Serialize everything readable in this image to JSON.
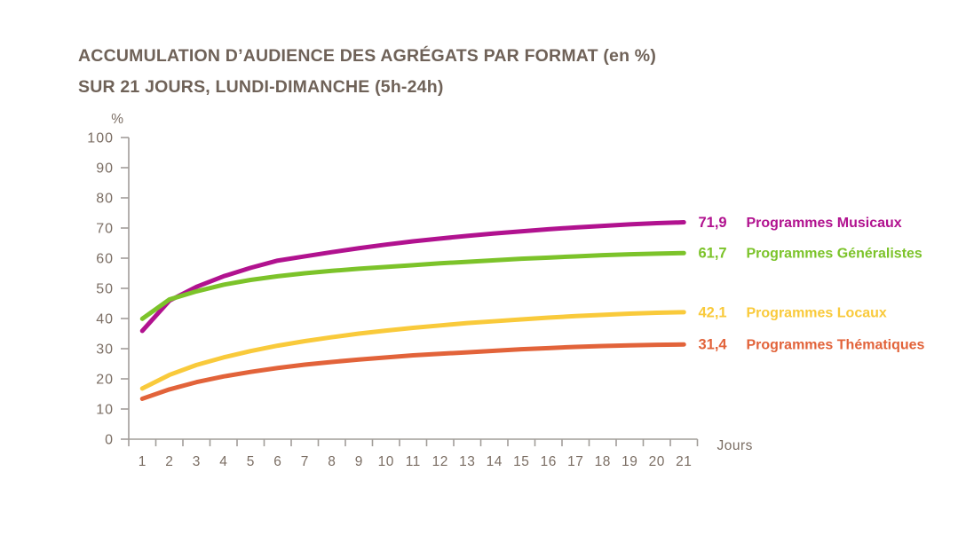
{
  "title": {
    "line1": "ACCUMULATION D’AUDIENCE DES AGRÉGATS PAR FORMAT (en %)",
    "line2": "SUR 21 JOURS, LUNDI-DIMANCHE (5h-24h)"
  },
  "colors": {
    "title_text": "#6F6258",
    "tick_text": "#7B6E64",
    "axis_line": "#A19D99"
  },
  "axes": {
    "y_unit": "%",
    "x_unit": "Jours",
    "y_ticks": [
      0,
      10,
      20,
      30,
      40,
      50,
      60,
      70,
      80,
      90,
      100
    ],
    "x_ticks": [
      1,
      2,
      3,
      4,
      5,
      6,
      7,
      8,
      9,
      10,
      11,
      12,
      13,
      14,
      15,
      16,
      17,
      18,
      19,
      20,
      21
    ]
  },
  "chart_data": {
    "type": "line",
    "title": "ACCUMULATION D’AUDIENCE DES AGRÉGATS PAR FORMAT (en %) SUR 21 JOURS, LUNDI-DIMANCHE (5h-24h)",
    "xlabel": "Jours",
    "ylabel": "%",
    "xlim": [
      1,
      21
    ],
    "ylim": [
      0,
      100
    ],
    "grid": false,
    "legend_position": "right of line ends",
    "x": [
      1,
      2,
      3,
      4,
      5,
      6,
      7,
      8,
      9,
      10,
      11,
      12,
      13,
      14,
      15,
      16,
      17,
      18,
      19,
      20,
      21
    ],
    "series": [
      {
        "name": "Programmes Musicaux",
        "color": "#B1128F",
        "end_label": "71,9",
        "final_value": 71.9,
        "values": [
          35.9,
          45.9,
          50.5,
          54.0,
          56.8,
          59.2,
          60.6,
          62.0,
          63.3,
          64.5,
          65.6,
          66.5,
          67.4,
          68.2,
          68.9,
          69.6,
          70.2,
          70.7,
          71.2,
          71.6,
          71.9
        ]
      },
      {
        "name": "Programmes Généralistes",
        "color": "#7CC32A",
        "end_label": "61,7",
        "final_value": 61.7,
        "values": [
          39.9,
          46.3,
          49.0,
          51.2,
          52.8,
          54.0,
          55.0,
          55.8,
          56.5,
          57.1,
          57.7,
          58.3,
          58.8,
          59.3,
          59.8,
          60.2,
          60.6,
          61.0,
          61.3,
          61.5,
          61.7
        ]
      },
      {
        "name": "Programmes Locaux",
        "color": "#F9CA3B",
        "end_label": "42,1",
        "final_value": 42.1,
        "values": [
          16.8,
          21.3,
          24.6,
          27.1,
          29.2,
          31.0,
          32.5,
          33.8,
          35.0,
          36.0,
          36.9,
          37.7,
          38.5,
          39.1,
          39.7,
          40.3,
          40.8,
          41.2,
          41.6,
          41.9,
          42.1
        ]
      },
      {
        "name": "Programmes Thématiques",
        "color": "#E2633A",
        "end_label": "31,4",
        "final_value": 31.4,
        "values": [
          13.4,
          16.5,
          18.9,
          20.8,
          22.3,
          23.6,
          24.7,
          25.6,
          26.4,
          27.1,
          27.8,
          28.3,
          28.8,
          29.3,
          29.8,
          30.2,
          30.6,
          30.9,
          31.1,
          31.3,
          31.4
        ]
      }
    ]
  }
}
